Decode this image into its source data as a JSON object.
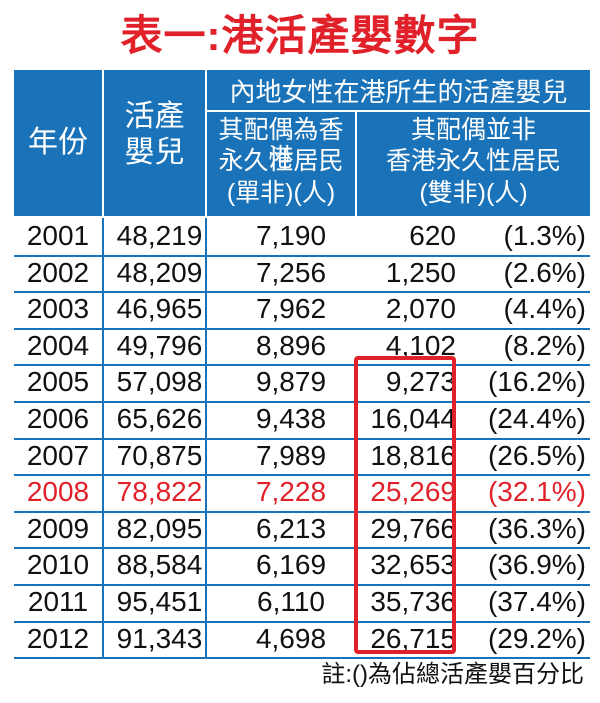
{
  "title": "表一:港活產嬰數字",
  "header": {
    "year": "年份",
    "live_births_1": "活產",
    "live_births_2": "嬰兒",
    "group": "內地女性在港所生的活產嬰兒",
    "single_1": "其配偶為香港",
    "single_2": "永久性居民",
    "single_3": "(單非)(人)",
    "double_1": "其配偶並非",
    "double_2": "香港永久性居民",
    "double_3": "(雙非)(人)"
  },
  "rows": [
    {
      "year": "2001",
      "live": "48,219",
      "single": "7,190",
      "double": "620",
      "pct": "(1.3%)"
    },
    {
      "year": "2002",
      "live": "48,209",
      "single": "7,256",
      "double": "1,250",
      "pct": "(2.6%)"
    },
    {
      "year": "2003",
      "live": "46,965",
      "single": "7,962",
      "double": "2,070",
      "pct": "(4.4%)"
    },
    {
      "year": "2004",
      "live": "49,796",
      "single": "8,896",
      "double": "4,102",
      "pct": "(8.2%)"
    },
    {
      "year": "2005",
      "live": "57,098",
      "single": "9,879",
      "double": "9,273",
      "pct": "(16.2%)"
    },
    {
      "year": "2006",
      "live": "65,626",
      "single": "9,438",
      "double": "16,044",
      "pct": "(24.4%)"
    },
    {
      "year": "2007",
      "live": "70,875",
      "single": "7,989",
      "double": "18,816",
      "pct": "(26.5%)"
    },
    {
      "year": "2008",
      "live": "78,822",
      "single": "7,228",
      "double": "25,269",
      "pct": "(32.1%)"
    },
    {
      "year": "2009",
      "live": "82,095",
      "single": "6,213",
      "double": "29,766",
      "pct": "(36.3%)"
    },
    {
      "year": "2010",
      "live": "88,584",
      "single": "6,169",
      "double": "32,653",
      "pct": "(36.9%)"
    },
    {
      "year": "2011",
      "live": "95,451",
      "single": "6,110",
      "double": "35,736",
      "pct": "(37.4%)"
    },
    {
      "year": "2012",
      "live": "91,343",
      "single": "4,698",
      "double": "26,715",
      "pct": "(29.2%)"
    }
  ],
  "highlight_year": "2008",
  "note": "註:()為佔總活產嬰百分比",
  "colors": {
    "header_blue": "#1a73b8",
    "accent_red": "#e0212a"
  }
}
